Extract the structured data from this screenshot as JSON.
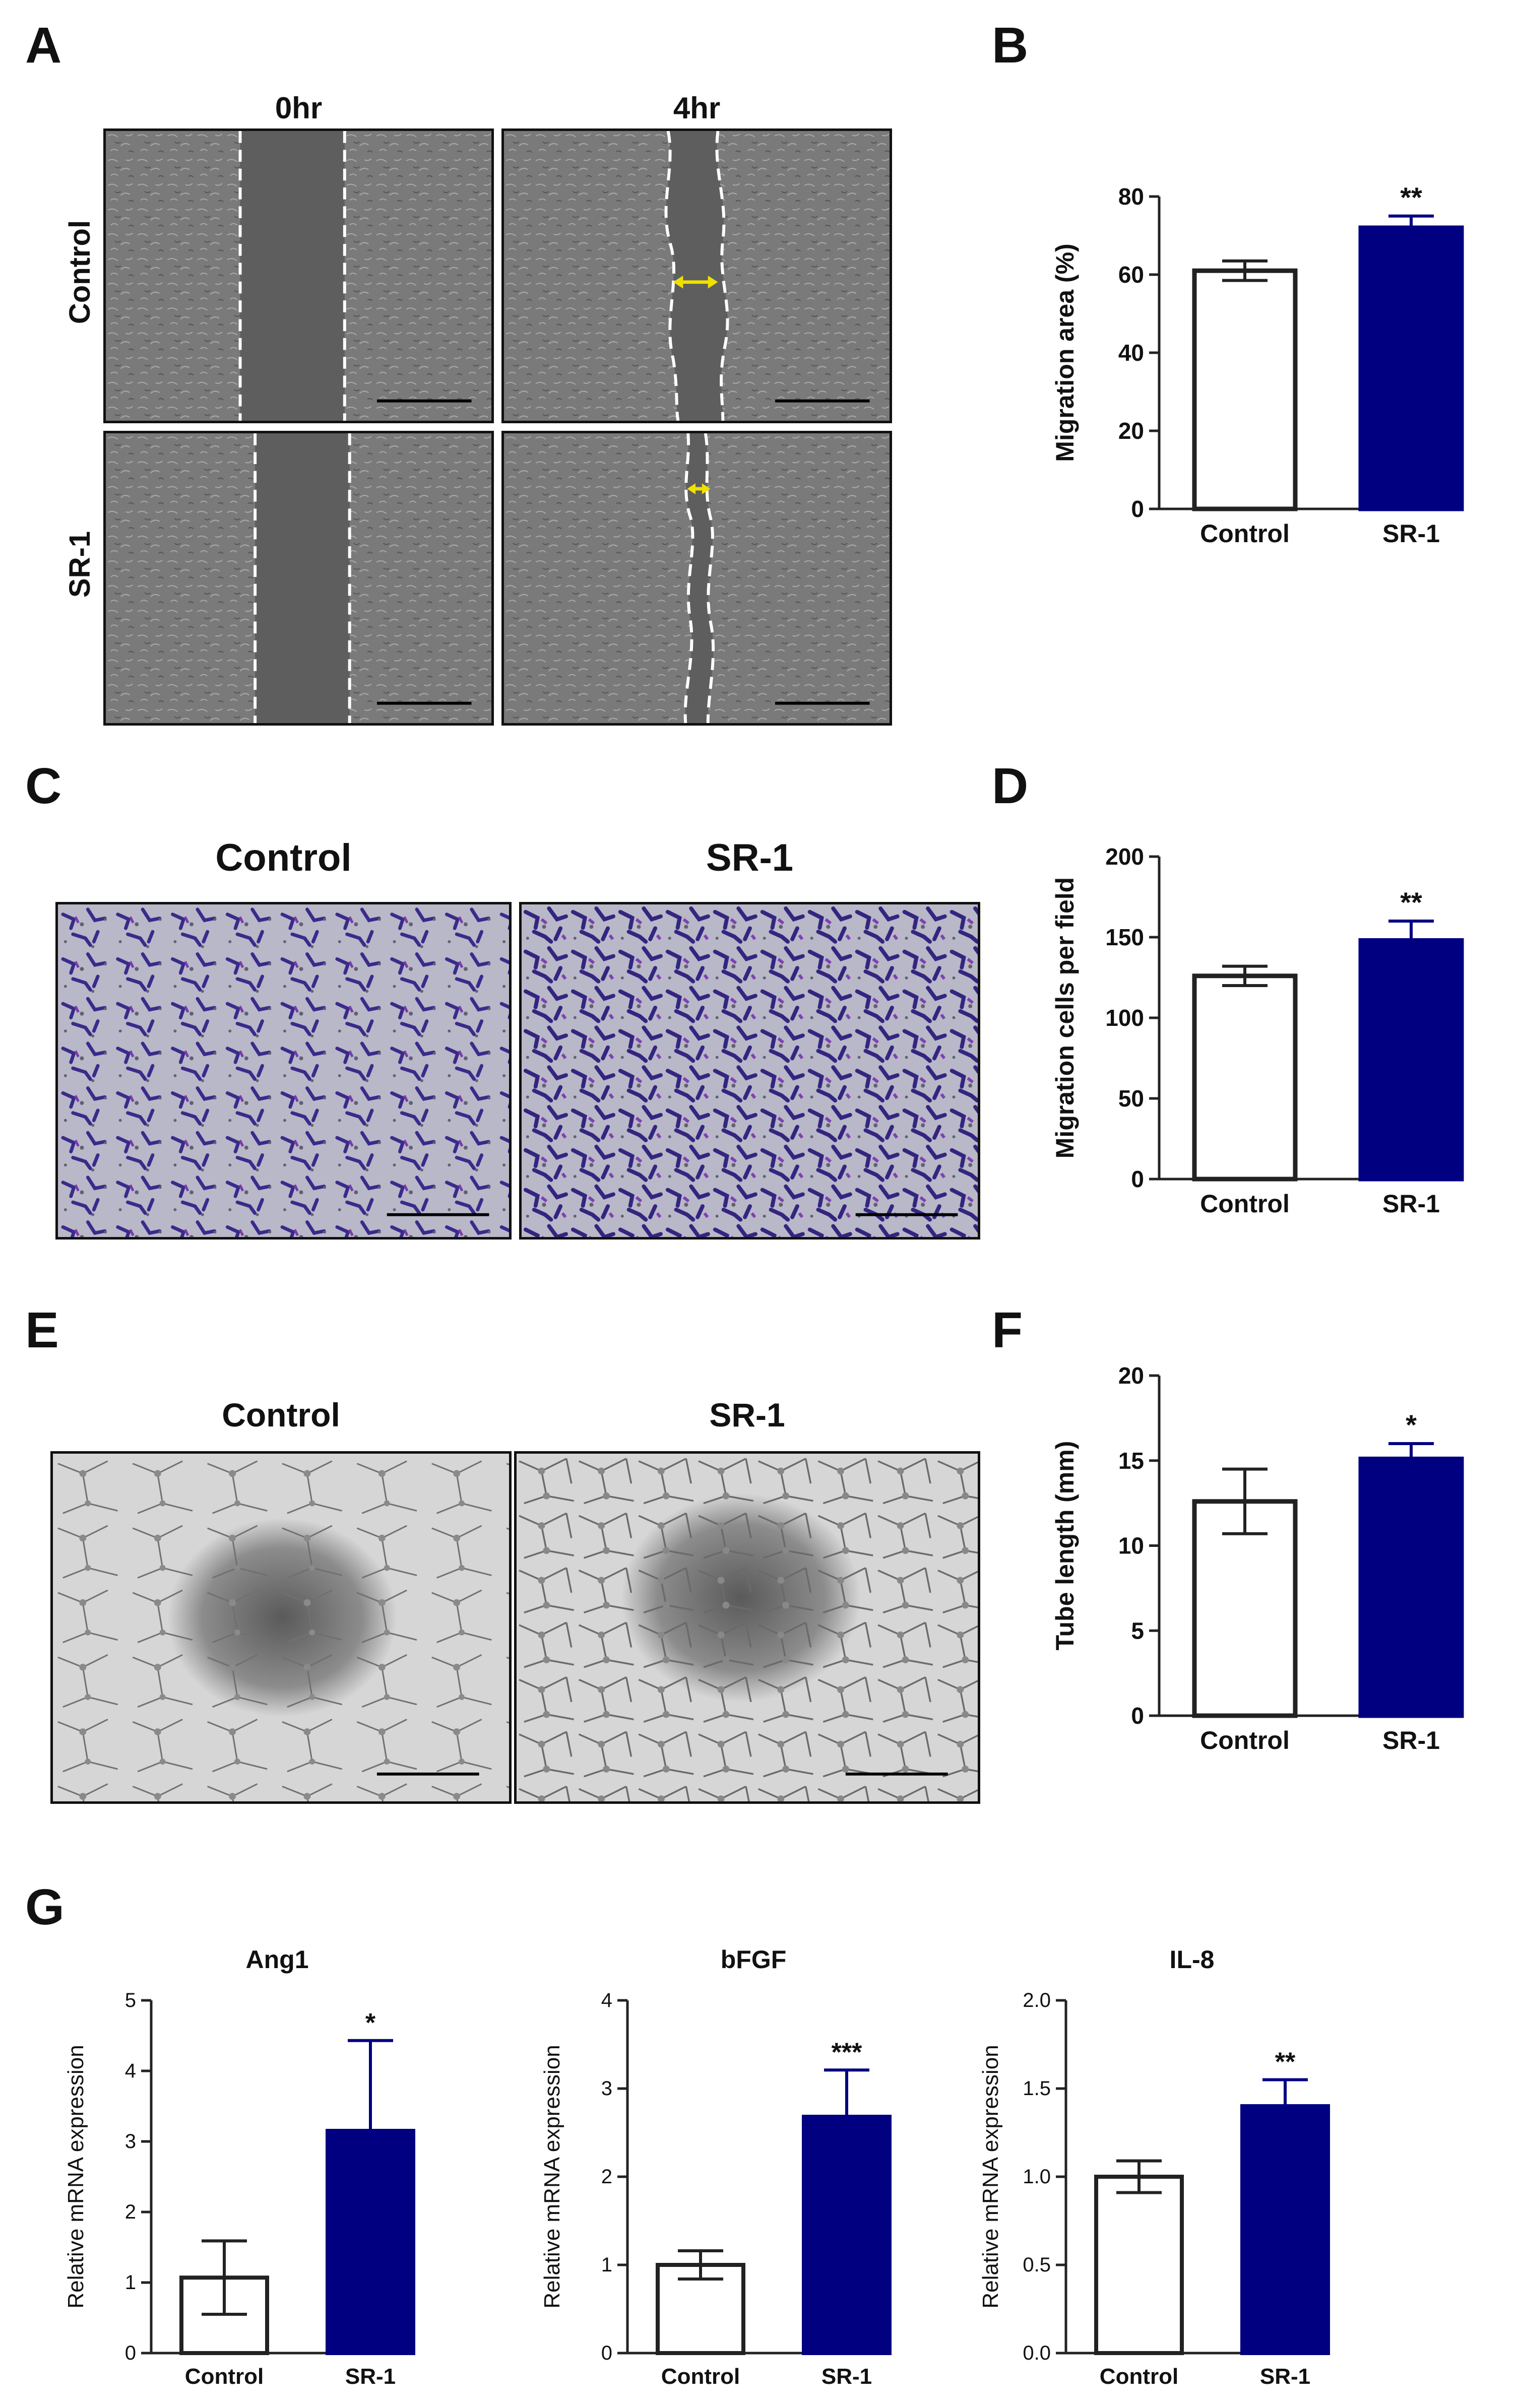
{
  "panels": {
    "A": {
      "letter": "A",
      "col_headers": [
        "0hr",
        "4hr"
      ],
      "row_labels": [
        "Control",
        "SR-1"
      ]
    },
    "B": {
      "letter": "B"
    },
    "C": {
      "letter": "C",
      "col_headers": [
        "Control",
        "SR-1"
      ]
    },
    "D": {
      "letter": "D"
    },
    "E": {
      "letter": "E",
      "col_headers": [
        "Control",
        "SR-1"
      ]
    },
    "F": {
      "letter": "F"
    },
    "G": {
      "letter": "G"
    }
  },
  "colors": {
    "bar_control_fill": "#ffffff",
    "bar_sr1_fill": "#000080",
    "axis": "#222222",
    "annotation_arrow": "#f0e000"
  },
  "chart_data": [
    {
      "id": "B",
      "type": "bar",
      "categories": [
        "Control",
        "SR-1"
      ],
      "values": [
        61,
        72
      ],
      "errors": [
        2.5,
        3
      ],
      "ylabel": "Migration area (%)",
      "ylim": [
        0,
        80
      ],
      "yticks": [
        0,
        20,
        40,
        60,
        80
      ],
      "ytick_labels": [
        "0",
        "20",
        "40",
        "60",
        "80"
      ],
      "significance": [
        "",
        "**"
      ]
    },
    {
      "id": "D",
      "type": "bar",
      "categories": [
        "Control",
        "SR-1"
      ],
      "values": [
        126,
        148
      ],
      "errors": [
        6,
        12
      ],
      "ylabel": "Migration cells per field",
      "ylim": [
        0,
        200
      ],
      "yticks": [
        0,
        50,
        100,
        150,
        200
      ],
      "ytick_labels": [
        "0",
        "50",
        "100",
        "150",
        "200"
      ],
      "significance": [
        "",
        "**"
      ]
    },
    {
      "id": "F",
      "type": "bar",
      "categories": [
        "Control",
        "SR-1"
      ],
      "values": [
        12.6,
        15.1
      ],
      "errors": [
        1.9,
        0.9
      ],
      "ylabel": "Tube length (mm)",
      "ylim": [
        0,
        20
      ],
      "yticks": [
        0,
        5,
        10,
        15,
        20
      ],
      "ytick_labels": [
        "0",
        "5",
        "10",
        "15",
        "20"
      ],
      "significance": [
        "",
        "*"
      ]
    },
    {
      "id": "G1",
      "type": "bar",
      "title": "Ang1",
      "categories": [
        "Control",
        "SR-1"
      ],
      "values": [
        1.07,
        3.15
      ],
      "errors": [
        0.52,
        1.28
      ],
      "ylabel": "Relative mRNA expression",
      "ylim": [
        0,
        5
      ],
      "yticks": [
        0,
        1,
        2,
        3,
        4,
        5
      ],
      "ytick_labels": [
        "0",
        "1",
        "2",
        "3",
        "4",
        "5"
      ],
      "significance": [
        "",
        "*"
      ]
    },
    {
      "id": "G2",
      "type": "bar",
      "title": "bFGF",
      "categories": [
        "Control",
        "SR-1"
      ],
      "values": [
        1.0,
        2.68
      ],
      "errors": [
        0.16,
        0.53
      ],
      "ylabel": "Relative mRNA expression",
      "ylim": [
        0,
        4
      ],
      "yticks": [
        0,
        1,
        2,
        3,
        4
      ],
      "ytick_labels": [
        "0",
        "1",
        "2",
        "3",
        "4"
      ],
      "significance": [
        "",
        "***"
      ]
    },
    {
      "id": "G3",
      "type": "bar",
      "title": "IL-8",
      "categories": [
        "Control",
        "SR-1"
      ],
      "values": [
        1.0,
        1.4
      ],
      "errors": [
        0.09,
        0.15
      ],
      "ylabel": "Relative mRNA expression",
      "ylim": [
        0,
        2.0
      ],
      "yticks": [
        0,
        0.5,
        1.0,
        1.5,
        2.0
      ],
      "ytick_labels": [
        "0.0",
        "0.5",
        "1.0",
        "1.5",
        "2.0"
      ],
      "significance": [
        "",
        "**"
      ]
    }
  ]
}
